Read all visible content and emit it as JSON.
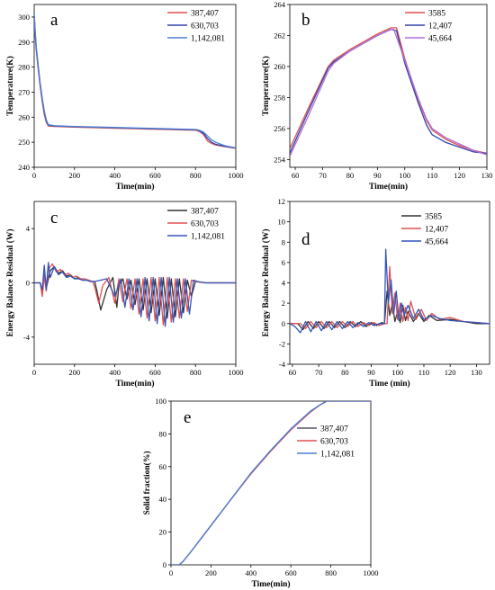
{
  "chart_data": [
    {
      "id": "a",
      "type": "line",
      "panel_label": "a",
      "xlabel": "Time(min)",
      "ylabel": "Temperature(K)",
      "xlim": [
        0,
        1000
      ],
      "ylim": [
        240,
        305
      ],
      "xticks": [
        0,
        200,
        400,
        600,
        800,
        1000
      ],
      "yticks": [
        240,
        250,
        260,
        270,
        280,
        290,
        300
      ],
      "legend_position": "top-right",
      "series": [
        {
          "name": "387,407",
          "color": "#e05050",
          "x": [
            0,
            5,
            10,
            20,
            30,
            40,
            50,
            60,
            70,
            100,
            200,
            300,
            400,
            500,
            600,
            700,
            800,
            820,
            840,
            860,
            880,
            900,
            950,
            1000
          ],
          "y": [
            300,
            293,
            287,
            279,
            272,
            266,
            261,
            258,
            256.5,
            256.3,
            256,
            255.8,
            255.6,
            255.4,
            255.2,
            255,
            254.8,
            254.3,
            253,
            250.5,
            249.5,
            248.9,
            248.2,
            247.6
          ]
        },
        {
          "name": "630,703",
          "color": "#3344aa",
          "x": [
            0,
            5,
            10,
            20,
            30,
            40,
            50,
            60,
            70,
            100,
            200,
            300,
            400,
            500,
            600,
            700,
            800,
            820,
            840,
            860,
            880,
            900,
            950,
            1000
          ],
          "y": [
            301,
            294,
            288,
            280,
            273,
            267,
            262,
            258.5,
            256.8,
            256.5,
            256.2,
            256,
            255.8,
            255.6,
            255.4,
            255.2,
            255,
            254.6,
            253.5,
            251.5,
            250,
            249.2,
            248.3,
            247.7
          ]
        },
        {
          "name": "1,142,081",
          "color": "#4a7fd6",
          "x": [
            0,
            5,
            10,
            20,
            30,
            40,
            50,
            60,
            70,
            100,
            200,
            300,
            400,
            500,
            600,
            700,
            800,
            820,
            840,
            860,
            880,
            900,
            950,
            1000
          ],
          "y": [
            301.5,
            294.5,
            288.5,
            280.5,
            273.5,
            267.5,
            262.5,
            259,
            257,
            256.6,
            256.3,
            256.1,
            255.9,
            255.7,
            255.5,
            255.3,
            255.1,
            254.8,
            254,
            252.5,
            251,
            250,
            248.5,
            247.8
          ]
        }
      ]
    },
    {
      "id": "b",
      "type": "line",
      "panel_label": "b",
      "xlabel": "Time(min)",
      "ylabel": "Temperature(K)",
      "xlim": [
        58,
        130
      ],
      "ylim": [
        253.5,
        264
      ],
      "xticks": [
        60,
        70,
        80,
        90,
        100,
        110,
        120,
        130
      ],
      "yticks": [
        254,
        256,
        258,
        260,
        262,
        264
      ],
      "legend_position": "top-right",
      "series": [
        {
          "name": "3585",
          "color": "#e05050",
          "x": [
            58,
            65,
            72,
            74,
            80,
            85,
            90,
            95,
            97,
            100,
            105,
            108,
            110,
            115,
            120,
            125,
            130
          ],
          "y": [
            254.7,
            257.4,
            260.0,
            260.4,
            261.1,
            261.6,
            262.1,
            262.5,
            262.5,
            260.5,
            257.8,
            256.5,
            255.9,
            255.3,
            254.9,
            254.6,
            254.4
          ]
        },
        {
          "name": "12,407",
          "color": "#3344aa",
          "x": [
            58,
            65,
            72,
            74,
            80,
            85,
            90,
            95,
            97,
            100,
            105,
            108,
            110,
            115,
            120,
            125,
            130
          ],
          "y": [
            254.4,
            257.2,
            259.9,
            260.3,
            261.0,
            261.5,
            262.0,
            262.4,
            262.3,
            260.2,
            257.6,
            256.2,
            255.6,
            255.1,
            254.8,
            254.5,
            254.4
          ]
        },
        {
          "name": "45,664",
          "color": "#b06fd8",
          "x": [
            58,
            65,
            72,
            74,
            80,
            85,
            90,
            95,
            96,
            100,
            105,
            108,
            110,
            115,
            120,
            125,
            130
          ],
          "y": [
            254.2,
            256.9,
            259.7,
            260.2,
            261.0,
            261.5,
            262.0,
            262.4,
            262.4,
            260.4,
            257.9,
            256.6,
            256.0,
            255.4,
            255.0,
            254.6,
            254.3
          ]
        }
      ]
    },
    {
      "id": "c",
      "type": "line",
      "panel_label": "c",
      "xlabel": "Time(min)",
      "ylabel": "Energy Balance Residual  (W)",
      "xlim": [
        0,
        1000
      ],
      "ylim": [
        -6,
        6
      ],
      "xticks": [
        0,
        200,
        400,
        600,
        800,
        1000
      ],
      "yticks": [
        -4,
        0,
        4
      ],
      "legend_position": "top-right",
      "series": [
        {
          "name": "387,407",
          "color": "#333333",
          "x": [
            0,
            30,
            40,
            50,
            60,
            80,
            100,
            120,
            140,
            160,
            180,
            200,
            220,
            240,
            260,
            280,
            300,
            310,
            330,
            360,
            390,
            410,
            420,
            440,
            460,
            480,
            500,
            520,
            540,
            560,
            580,
            600,
            620,
            640,
            660,
            680,
            700,
            720,
            740,
            760,
            780,
            800,
            850,
            1000
          ],
          "y": [
            0,
            0,
            -0.8,
            0.6,
            -0.4,
            0.9,
            1.2,
            0.7,
            0.9,
            0.5,
            0.6,
            0.3,
            0.4,
            0.2,
            0.2,
            0.1,
            0.1,
            -0.5,
            -2.0,
            -0.5,
            0.4,
            -1.8,
            -0.2,
            0.3,
            -1.2,
            0.2,
            -1.6,
            0.3,
            -2.0,
            0.3,
            -2.2,
            0.3,
            -2.4,
            0.4,
            -2.6,
            0.3,
            -2.5,
            0.3,
            -2.2,
            0.2,
            -1.0,
            0.1,
            0,
            0
          ]
        },
        {
          "name": "630,703",
          "color": "#e05050",
          "x": [
            0,
            30,
            40,
            50,
            60,
            70,
            90,
            110,
            130,
            150,
            170,
            190,
            210,
            230,
            250,
            270,
            290,
            300,
            320,
            340,
            370,
            400,
            420,
            440,
            460,
            480,
            500,
            520,
            540,
            560,
            580,
            600,
            620,
            640,
            660,
            680,
            700,
            720,
            740,
            760,
            780,
            800,
            850,
            1000
          ],
          "y": [
            0,
            0,
            -1.0,
            0.5,
            -0.6,
            1.0,
            1.4,
            0.8,
            1.0,
            0.6,
            0.7,
            0.4,
            0.5,
            0.3,
            0.3,
            0.2,
            0.1,
            -0.3,
            -1.5,
            -0.2,
            0.4,
            -1.5,
            0.3,
            -1.4,
            0.3,
            -1.9,
            0.3,
            -2.3,
            0.3,
            -2.6,
            0.4,
            -2.8,
            0.4,
            -3.1,
            0.4,
            -2.9,
            0.3,
            -2.6,
            0.3,
            -2.1,
            0.2,
            0.1,
            0,
            0
          ]
        },
        {
          "name": "1,142,081",
          "color": "#3355bb",
          "x": [
            0,
            30,
            40,
            50,
            60,
            70,
            80,
            100,
            120,
            140,
            160,
            180,
            200,
            220,
            240,
            260,
            280,
            300,
            330,
            360,
            400,
            430,
            450,
            470,
            490,
            510,
            530,
            550,
            570,
            590,
            610,
            630,
            650,
            670,
            690,
            710,
            730,
            750,
            770,
            790,
            810,
            850,
            1000
          ],
          "y": [
            0,
            0,
            -0.5,
            1.3,
            -0.5,
            1.5,
            0.4,
            1.2,
            0.6,
            0.8,
            0.4,
            0.5,
            0.3,
            0.3,
            0.2,
            0.2,
            0.1,
            0.1,
            0.2,
            0.3,
            -1.0,
            0.3,
            -1.8,
            0.3,
            -2.0,
            0.3,
            -2.5,
            0.4,
            -2.8,
            0.4,
            -3.0,
            0.4,
            -3.2,
            0.4,
            -2.9,
            0.3,
            -2.6,
            0.3,
            -2.3,
            0.2,
            0.1,
            0,
            0
          ]
        }
      ]
    },
    {
      "id": "d",
      "type": "line",
      "panel_label": "d",
      "xlabel": "Time (min)",
      "ylabel": "Energy Balance Residual (W)",
      "xlim": [
        59,
        135
      ],
      "ylim": [
        -4,
        12
      ],
      "xticks": [
        60,
        70,
        80,
        90,
        100,
        110,
        120,
        130
      ],
      "yticks": [
        -4,
        -2,
        0,
        2,
        4,
        6,
        8,
        10,
        12
      ],
      "legend_position": "top-right",
      "series": [
        {
          "name": "3585",
          "color": "#333333",
          "x": [
            59,
            62,
            64,
            66,
            68,
            70,
            72,
            74,
            76,
            78,
            80,
            82,
            84,
            86,
            88,
            90,
            92,
            94,
            95,
            96,
            97,
            98,
            99,
            100,
            101,
            102,
            103,
            104,
            106,
            108,
            110,
            112,
            115,
            120,
            125,
            130,
            135
          ],
          "y": [
            0,
            0,
            -0.6,
            0.2,
            -0.5,
            0.2,
            -0.5,
            0.2,
            -0.4,
            0.2,
            -0.4,
            0.2,
            -0.3,
            0.2,
            -0.3,
            0.1,
            -0.2,
            0.1,
            0,
            3.2,
            0.8,
            2.0,
            0.2,
            1.2,
            0.1,
            1.8,
            0.3,
            1.2,
            0.2,
            1.0,
            0.2,
            0.8,
            0.3,
            0.4,
            0.2,
            0,
            0
          ]
        },
        {
          "name": "12,407",
          "color": "#e05050",
          "x": [
            59,
            63,
            65,
            67,
            69,
            71,
            73,
            75,
            77,
            79,
            81,
            83,
            85,
            87,
            89,
            91,
            93,
            95,
            96,
            97,
            98,
            99,
            100,
            101,
            102,
            103,
            104,
            105,
            107,
            109,
            111,
            113,
            116,
            120,
            125,
            130,
            135
          ],
          "y": [
            0,
            0,
            -0.5,
            0.2,
            -0.4,
            0.2,
            -0.4,
            0.2,
            -0.4,
            0.2,
            -0.3,
            0.2,
            -0.3,
            0.1,
            -0.2,
            0.1,
            -0.2,
            0,
            0,
            5.6,
            1.0,
            3.0,
            0.4,
            2.0,
            0.2,
            1.6,
            0.3,
            2.2,
            0.4,
            1.4,
            0.3,
            1.0,
            0.4,
            0.6,
            0.2,
            0.1,
            0
          ]
        },
        {
          "name": "45,664",
          "color": "#3355bb",
          "x": [
            59,
            61,
            63,
            65,
            67,
            69,
            71,
            73,
            75,
            77,
            79,
            81,
            83,
            85,
            87,
            89,
            91,
            93,
            95,
            95.5,
            96.5,
            97.5,
            98.5,
            99.5,
            100.5,
            101.5,
            102.5,
            104,
            106,
            108,
            110,
            113,
            116,
            120,
            125,
            130,
            135
          ],
          "y": [
            0,
            -0.3,
            -0.9,
            0.2,
            -0.8,
            0.2,
            -0.7,
            0.2,
            -0.6,
            0.2,
            -0.5,
            0.2,
            -0.4,
            0.1,
            -0.3,
            0.1,
            -0.2,
            0,
            0,
            7.3,
            2.0,
            4.3,
            0.9,
            3.2,
            0.3,
            2.0,
            0.8,
            1.8,
            0.5,
            1.4,
            0.4,
            0.8,
            0.5,
            0.3,
            0.2,
            0.1,
            0
          ]
        }
      ]
    },
    {
      "id": "e",
      "type": "line",
      "panel_label": "e",
      "xlabel": "Time(min)",
      "ylabel": "Solid fraction(%)",
      "xlim": [
        0,
        1000
      ],
      "ylim": [
        0,
        100
      ],
      "xticks": [
        0,
        200,
        400,
        600,
        800,
        1000
      ],
      "yticks": [
        0,
        20,
        40,
        60,
        80,
        100
      ],
      "legend_position": "right",
      "series": [
        {
          "name": "387,407",
          "color": "#555566",
          "x": [
            0,
            40,
            60,
            100,
            200,
            300,
            400,
            500,
            600,
            700,
            750,
            780,
            800,
            1000
          ],
          "y": [
            0,
            0,
            2,
            8,
            24,
            40,
            56,
            70,
            83,
            94,
            98,
            100,
            100,
            100
          ]
        },
        {
          "name": "630,703",
          "color": "#e05050",
          "x": [
            0,
            40,
            60,
            100,
            200,
            300,
            400,
            500,
            600,
            700,
            750,
            780,
            800,
            1000
          ],
          "y": [
            0,
            0,
            2,
            8,
            24,
            40,
            55.5,
            69.5,
            82.5,
            93.5,
            98,
            100,
            100,
            100
          ]
        },
        {
          "name": "1,142,081",
          "color": "#4a7fd6",
          "x": [
            0,
            40,
            60,
            100,
            200,
            300,
            400,
            500,
            600,
            700,
            750,
            780,
            800,
            1000
          ],
          "y": [
            0,
            0,
            2,
            8,
            24,
            40,
            56,
            70,
            83,
            94,
            98,
            100,
            100,
            100
          ]
        }
      ]
    }
  ]
}
